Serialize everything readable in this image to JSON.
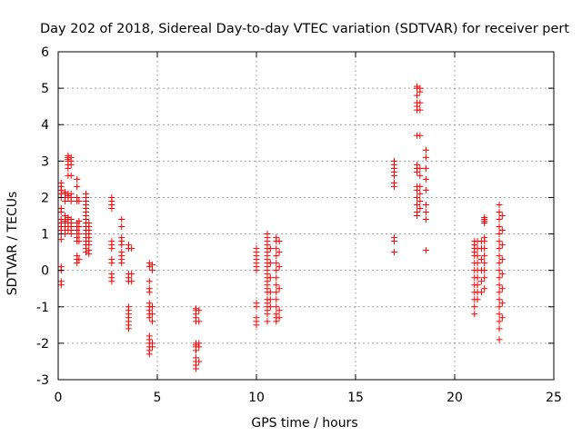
{
  "chart_data": {
    "type": "scatter",
    "title": "Day 202 of 2018, Sidereal Day-to-day VTEC variation (SDTVAR) for receiver pert",
    "xlabel": "GPS time / hours",
    "ylabel": "SDTVAR / TECUs",
    "xlim": [
      0,
      25
    ],
    "ylim": [
      -3,
      6
    ],
    "xticks": [
      0,
      5,
      10,
      15,
      20,
      25
    ],
    "yticks": [
      -3,
      -2,
      -1,
      0,
      1,
      2,
      3,
      4,
      5,
      6
    ],
    "xtick_labels": [
      "0",
      "5",
      "10",
      "15",
      "20",
      "25"
    ],
    "ytick_labels": [
      "-3",
      "-2",
      "-1",
      "0",
      "1",
      "2",
      "3",
      "4",
      "5",
      "6"
    ],
    "grid": true,
    "marker": "+",
    "colors": {
      "series": "#ff0000",
      "grid": "#a0a0a0",
      "axis": "#000000"
    },
    "series": [
      {
        "name": "SDTVAR",
        "clusters": [
          {
            "x": 0.15,
            "y": [
              -0.4,
              -0.3,
              0.0,
              0.1,
              0.85,
              1.0,
              1.1,
              1.2,
              1.3,
              1.4,
              1.6,
              1.7,
              2.0,
              2.1,
              2.2,
              2.3,
              2.4
            ]
          },
          {
            "x": 0.35,
            "y": [
              1.0,
              1.1,
              1.2,
              1.3,
              1.35,
              1.4,
              1.5,
              1.9,
              2.0,
              2.1,
              2.15
            ]
          },
          {
            "x": 0.5,
            "y": [
              1.1,
              1.2,
              1.3,
              1.4,
              1.45,
              2.0,
              2.05,
              2.1,
              2.6,
              2.8,
              2.9,
              3.0,
              3.05,
              3.1,
              3.15
            ]
          },
          {
            "x": 0.65,
            "y": [
              1.0,
              1.1,
              1.2,
              1.3,
              1.4,
              1.9,
              2.0,
              2.1,
              2.6,
              2.9,
              3.0,
              3.1
            ]
          },
          {
            "x": 0.95,
            "y": [
              0.2,
              0.3,
              0.4,
              0.8,
              0.9,
              1.0,
              1.1,
              1.2,
              1.3,
              1.9,
              2.0,
              2.3,
              2.5
            ]
          },
          {
            "x": 1.05,
            "y": [
              0.3,
              0.8,
              1.0,
              1.2,
              1.35,
              1.9
            ]
          },
          {
            "x": 1.4,
            "y": [
              0.5,
              0.6,
              0.7,
              0.8,
              0.9,
              1.0,
              1.1,
              1.2,
              1.3,
              1.4,
              1.5,
              1.6,
              1.7,
              1.8,
              1.9,
              2.0,
              2.1
            ]
          },
          {
            "x": 1.55,
            "y": [
              0.45,
              0.55,
              0.7,
              0.8,
              0.9,
              1.0,
              1.1,
              1.2,
              1.3
            ]
          },
          {
            "x": 2.7,
            "y": [
              -0.3,
              -0.2,
              -0.1,
              0.2,
              0.3,
              0.6,
              0.7,
              0.8,
              1.7,
              1.8,
              1.9,
              2.0
            ]
          },
          {
            "x": 3.2,
            "y": [
              0.2,
              0.3,
              0.4,
              0.5,
              0.7,
              0.8,
              0.9,
              1.2,
              1.4
            ]
          },
          {
            "x": 3.55,
            "y": [
              -1.6,
              -1.5,
              -1.4,
              -1.3,
              -1.2,
              -1.1,
              -1.0,
              -0.3,
              -0.2,
              -0.1,
              0.6,
              0.7
            ]
          },
          {
            "x": 3.7,
            "y": [
              -0.3,
              -0.1,
              0.6
            ]
          },
          {
            "x": 4.6,
            "y": [
              -2.3,
              -2.2,
              -2.1,
              -2.0,
              -1.9,
              -1.8,
              -1.3,
              -1.2,
              -1.1,
              -1.0,
              -0.9,
              -0.6,
              -0.5,
              -0.3,
              0.1,
              0.2
            ]
          },
          {
            "x": 4.75,
            "y": [
              -2.1,
              -2.0,
              -1.4,
              -1.2,
              -1.0,
              0.0,
              0.15
            ]
          },
          {
            "x": 6.95,
            "y": [
              -2.7,
              -2.6,
              -2.5,
              -2.4,
              -2.2,
              -2.1,
              -2.05,
              -2.0,
              -1.4,
              -1.3,
              -1.2,
              -1.1,
              -1.05
            ]
          },
          {
            "x": 7.1,
            "y": [
              -2.5,
              -2.1,
              -2.0,
              -1.4,
              -1.1
            ]
          },
          {
            "x": 10.0,
            "y": [
              -1.5,
              -1.4,
              -1.3,
              -1.0,
              -0.9,
              0.0,
              0.1,
              0.2,
              0.3,
              0.4,
              0.5,
              0.6
            ]
          },
          {
            "x": 10.55,
            "y": [
              -1.4,
              -1.2,
              -1.1,
              -1.0,
              -0.9,
              -0.8,
              -0.6,
              -0.5,
              -0.4,
              -0.3,
              -0.2,
              -0.1,
              0.0,
              0.1,
              0.2,
              0.3,
              0.4,
              0.5,
              0.6,
              0.7,
              0.8,
              0.9,
              1.0
            ]
          },
          {
            "x": 10.7,
            "y": [
              -1.0,
              -0.8,
              -0.6,
              -0.2,
              0.2,
              0.6
            ]
          },
          {
            "x": 11.0,
            "y": [
              -1.4,
              -1.3,
              -1.2,
              -1.0,
              -0.8,
              -0.6,
              -0.4,
              -0.2,
              0.0,
              0.2,
              0.4,
              0.6,
              0.8,
              0.9
            ]
          },
          {
            "x": 11.15,
            "y": [
              -1.3,
              -1.1,
              -0.5,
              0.1,
              0.5,
              0.8
            ]
          },
          {
            "x": 16.95,
            "y": [
              0.5,
              0.8,
              0.9,
              2.3,
              2.4,
              2.6,
              2.7,
              2.8,
              2.9,
              3.0
            ]
          },
          {
            "x": 18.1,
            "y": [
              1.5,
              1.6,
              1.8,
              2.0,
              2.2,
              2.3,
              2.7,
              2.8,
              2.9,
              3.7,
              4.4,
              4.5,
              4.6,
              4.8,
              5.0,
              5.05
            ]
          },
          {
            "x": 18.25,
            "y": [
              1.7,
              1.9,
              2.1,
              2.3,
              2.6,
              2.8,
              3.7,
              4.4,
              4.6,
              4.9,
              5.0
            ]
          },
          {
            "x": 18.55,
            "y": [
              0.55,
              1.4,
              1.6,
              1.8,
              2.2,
              2.5,
              2.8,
              3.1,
              3.3
            ]
          },
          {
            "x": 21.0,
            "y": [
              -1.2,
              -1.0,
              -0.8,
              -0.6,
              -0.4,
              -0.2,
              0.0,
              0.2,
              0.4,
              0.5,
              0.6,
              0.7,
              0.8
            ]
          },
          {
            "x": 21.15,
            "y": [
              -0.8,
              -0.6,
              -0.4,
              -0.2,
              0.0,
              0.2,
              0.4,
              0.6,
              0.8
            ]
          },
          {
            "x": 21.35,
            "y": [
              -0.6,
              -0.3,
              0.0,
              0.3,
              0.6,
              0.8
            ]
          },
          {
            "x": 21.5,
            "y": [
              -0.5,
              -0.2,
              0.0,
              0.2,
              0.4,
              0.6,
              0.8,
              0.9,
              1.3,
              1.35,
              1.4,
              1.45
            ]
          },
          {
            "x": 22.25,
            "y": [
              -1.9,
              -1.6,
              -1.4,
              -1.2,
              -1.0,
              -0.8,
              -0.6,
              -0.4,
              -0.2,
              0.0,
              0.2,
              0.4,
              0.6,
              0.8,
              1.0,
              1.2,
              1.4,
              1.6,
              1.8
            ]
          },
          {
            "x": 22.4,
            "y": [
              -1.3,
              -0.9,
              -0.5,
              -0.1,
              0.3,
              0.7,
              1.1,
              1.5
            ]
          }
        ]
      }
    ]
  }
}
